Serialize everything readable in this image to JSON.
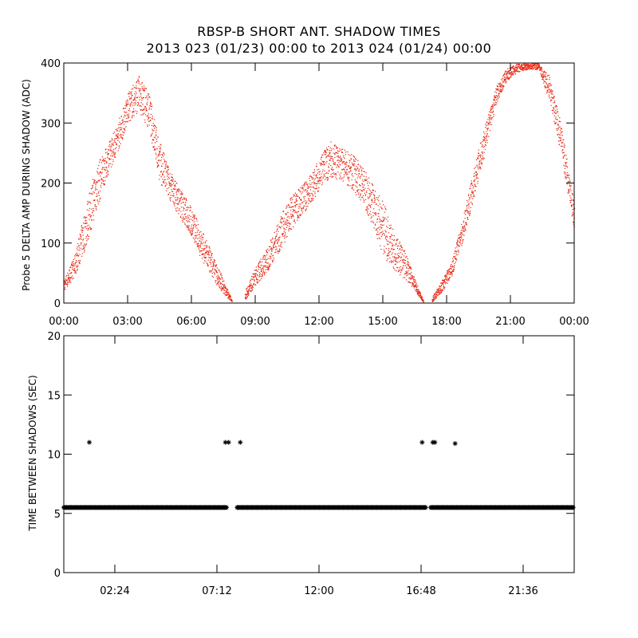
{
  "title": {
    "line1": "RBSP-B SHORT ANT. SHADOW TIMES",
    "line2": "2013 023 (01/23) 00:00 to 2013 024 (01/24) 00:00"
  },
  "colors": {
    "scatter": "#e8200c",
    "ink": "#000000"
  },
  "chart_data": [
    {
      "type": "scatter",
      "ylabel": "Probe 5 DELTA AMP DURING SHADOW (ADC)",
      "xlabel": "",
      "x_unit": "hours",
      "xlim": [
        0,
        24
      ],
      "ylim": [
        0,
        400
      ],
      "x_ticks": [
        0,
        3,
        6,
        9,
        12,
        15,
        18,
        21,
        24
      ],
      "x_tick_labels": [
        "00:00",
        "03:00",
        "06:00",
        "09:00",
        "12:00",
        "15:00",
        "18:00",
        "21:00",
        "00:00"
      ],
      "y_ticks": [
        0,
        100,
        200,
        300,
        400
      ],
      "y_tick_labels": [
        "0",
        "100",
        "200",
        "300",
        "400"
      ],
      "grid": false,
      "series": [
        {
          "color": "#e8200c",
          "profile_upper": [
            [
              0,
              40
            ],
            [
              0.5,
              80
            ],
            [
              1,
              160
            ],
            [
              1.5,
              230
            ],
            [
              2,
              260
            ],
            [
              2.5,
              300
            ],
            [
              3,
              350
            ],
            [
              3.5,
              380
            ],
            [
              4,
              350
            ],
            [
              4.5,
              270
            ],
            [
              5,
              220
            ],
            [
              5.5,
              190
            ],
            [
              6,
              160
            ],
            [
              6.5,
              120
            ],
            [
              7,
              80
            ],
            [
              7.5,
              40
            ],
            [
              7.9,
              5
            ]
          ],
          "profile_lower": [
            [
              0,
              20
            ],
            [
              0.5,
              45
            ],
            [
              1,
              90
            ],
            [
              1.5,
              150
            ],
            [
              2,
              210
            ],
            [
              2.5,
              250
            ],
            [
              3,
              300
            ],
            [
              3.5,
              320
            ],
            [
              4,
              290
            ],
            [
              4.5,
              200
            ],
            [
              5,
              170
            ],
            [
              5.5,
              140
            ],
            [
              6,
              110
            ],
            [
              6.5,
              70
            ],
            [
              7,
              40
            ],
            [
              7.5,
              15
            ],
            [
              7.9,
              3
            ]
          ],
          "profile_upper_2": [
            [
              8.5,
              20
            ],
            [
              9,
              60
            ],
            [
              9.5,
              90
            ],
            [
              10,
              130
            ],
            [
              10.5,
              170
            ],
            [
              11,
              190
            ],
            [
              11.5,
              210
            ],
            [
              12,
              240
            ],
            [
              12.5,
              270
            ],
            [
              13,
              260
            ],
            [
              13.5,
              250
            ],
            [
              14,
              230
            ],
            [
              14.5,
              200
            ],
            [
              15,
              170
            ],
            [
              15.5,
              120
            ],
            [
              16,
              90
            ],
            [
              16.5,
              40
            ],
            [
              16.9,
              5
            ]
          ],
          "profile_lower_2": [
            [
              8.5,
              5
            ],
            [
              9,
              30
            ],
            [
              9.5,
              50
            ],
            [
              10,
              80
            ],
            [
              10.5,
              110
            ],
            [
              11,
              140
            ],
            [
              11.5,
              160
            ],
            [
              12,
              190
            ],
            [
              12.5,
              210
            ],
            [
              13,
              205
            ],
            [
              13.5,
              190
            ],
            [
              14,
              170
            ],
            [
              14.5,
              130
            ],
            [
              15,
              80
            ],
            [
              15.5,
              55
            ],
            [
              16,
              40
            ],
            [
              16.5,
              20
            ],
            [
              16.9,
              2
            ]
          ],
          "profile_upper_3": [
            [
              17.3,
              10
            ],
            [
              17.8,
              40
            ],
            [
              18.3,
              80
            ],
            [
              18.8,
              150
            ],
            [
              19.3,
              230
            ],
            [
              19.8,
              300
            ],
            [
              20.3,
              360
            ],
            [
              20.8,
              390
            ],
            [
              21.3,
              400
            ],
            [
              21.8,
              400
            ],
            [
              22.3,
              400
            ],
            [
              22.8,
              380
            ],
            [
              23.3,
              310
            ],
            [
              23.7,
              230
            ],
            [
              24,
              160
            ]
          ],
          "profile_lower_3": [
            [
              17.3,
              2
            ],
            [
              17.8,
              20
            ],
            [
              18.3,
              50
            ],
            [
              18.8,
              110
            ],
            [
              19.3,
              180
            ],
            [
              19.8,
              250
            ],
            [
              20.3,
              330
            ],
            [
              20.8,
              370
            ],
            [
              21.3,
              385
            ],
            [
              21.8,
              390
            ],
            [
              22.3,
              390
            ],
            [
              22.8,
              340
            ],
            [
              23.3,
              260
            ],
            [
              23.7,
              180
            ],
            [
              24,
              120
            ]
          ]
        }
      ]
    },
    {
      "type": "scatter",
      "ylabel": "TIME BETWEEN SHADOWS (SEC)",
      "xlabel": "",
      "x_unit": "hours",
      "xlim": [
        0,
        24
      ],
      "ylim": [
        0,
        20
      ],
      "x_ticks": [
        2.4,
        7.2,
        12.0,
        16.8,
        21.6
      ],
      "x_tick_labels": [
        "02:24",
        "07:12",
        "12:00",
        "16:48",
        "21:36"
      ],
      "y_ticks": [
        0,
        5,
        10,
        15,
        20
      ],
      "y_tick_labels": [
        "0",
        "5",
        "10",
        "15",
        "20"
      ],
      "grid": false,
      "baseline": {
        "value": 5.5,
        "segments": [
          [
            0.0,
            7.65
          ],
          [
            8.15,
            17.05
          ],
          [
            17.25,
            24.0
          ]
        ]
      },
      "outliers": [
        {
          "x": 1.2,
          "y": 11.0
        },
        {
          "x": 7.6,
          "y": 11.0
        },
        {
          "x": 7.75,
          "y": 11.0
        },
        {
          "x": 8.3,
          "y": 11.0
        },
        {
          "x": 16.85,
          "y": 11.0
        },
        {
          "x": 17.35,
          "y": 11.0
        },
        {
          "x": 17.45,
          "y": 11.0
        },
        {
          "x": 18.4,
          "y": 10.9
        }
      ]
    }
  ]
}
